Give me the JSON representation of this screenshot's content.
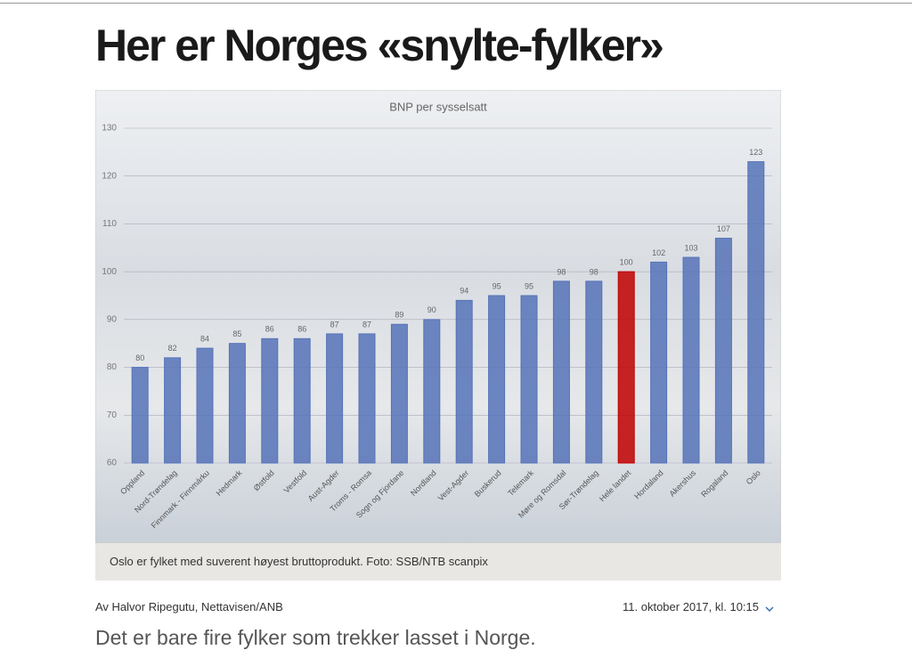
{
  "title": "Her er Norges «snylte-fylker»",
  "chart_data": {
    "type": "bar",
    "title": "BNP per sysselsatt",
    "categories": [
      "Oppland",
      "Nord-Trøndelag",
      "Finnmark - Finnmárku",
      "Hedmark",
      "Østfold",
      "Vestfold",
      "Aust-Agder",
      "Troms - Romsa",
      "Sogn og Fjordane",
      "Nordland",
      "Vest-Agder",
      "Buskerud",
      "Telemark",
      "Møre og Romsdal",
      "Sør-Trøndelag",
      "Hele landet",
      "Hordaland",
      "Akershus",
      "Rogaland",
      "Oslo"
    ],
    "values": [
      80,
      82,
      84,
      85,
      86,
      86,
      87,
      87,
      89,
      90,
      94,
      95,
      95,
      98,
      98,
      100,
      102,
      103,
      107,
      123
    ],
    "colors": [
      "#5673b8",
      "#5673b8",
      "#5673b8",
      "#5673b8",
      "#5673b8",
      "#5673b8",
      "#5673b8",
      "#5673b8",
      "#5673b8",
      "#5673b8",
      "#5673b8",
      "#5673b8",
      "#5673b8",
      "#5673b8",
      "#5673b8",
      "#c00000",
      "#5673b8",
      "#5673b8",
      "#5673b8",
      "#5673b8"
    ],
    "ylim": [
      60,
      130
    ],
    "yticks": [
      60,
      70,
      80,
      90,
      100,
      110,
      120,
      130
    ],
    "grid": true
  },
  "caption": "Oslo er fylket med suverent høyest bruttoprodukt. Foto: SSB/NTB scanpix",
  "byline": "Av Halvor Ripegutu, Nettavisen/ANB",
  "date": "11. oktober 2017, kl. 10:15",
  "lead": "Det er bare fire fylker som trekker lasset i Norge."
}
